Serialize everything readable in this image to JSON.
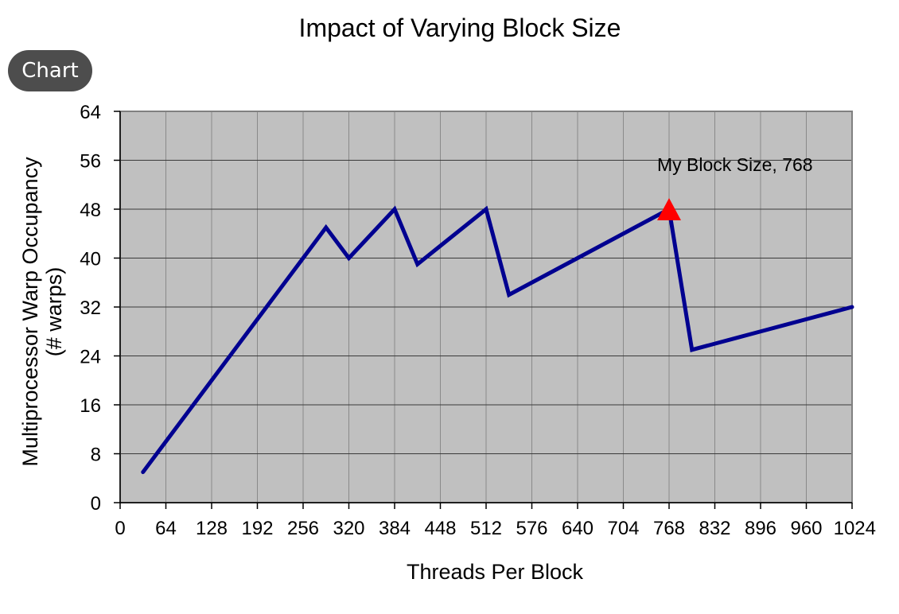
{
  "chip": {
    "label": "Chart"
  },
  "chart_data": {
    "type": "line",
    "title": "Impact of Varying Block Size",
    "xlabel": "Threads Per Block",
    "ylabel_lines": [
      "Multiprocessor Warp Occupancy",
      "(# warps)"
    ],
    "xlim": [
      0,
      1024
    ],
    "ylim": [
      0,
      64
    ],
    "xticks": [
      0,
      64,
      128,
      192,
      256,
      320,
      384,
      448,
      512,
      576,
      640,
      704,
      768,
      832,
      896,
      960,
      1024
    ],
    "yticks": [
      0,
      8,
      16,
      24,
      32,
      40,
      48,
      56,
      64
    ],
    "xtick_labels": [
      "0",
      "64",
      "128",
      "192",
      "256",
      "320",
      "384",
      "448",
      "512",
      "576",
      "640",
      "704",
      "768",
      "832",
      "896",
      "960",
      "1024"
    ],
    "ytick_labels": [
      "0",
      "8",
      "16",
      "24",
      "32",
      "40",
      "48",
      "56",
      "64"
    ],
    "grid": true,
    "plot_background": "#c0c0c0",
    "series": [
      {
        "color": "#000090",
        "x": [
          32,
          64,
          96,
          128,
          160,
          192,
          224,
          256,
          288,
          320,
          352,
          384,
          416,
          448,
          480,
          512,
          544,
          576,
          608,
          640,
          672,
          704,
          736,
          768,
          800,
          832,
          864,
          896,
          928,
          960,
          992,
          1024
        ],
        "y": [
          5,
          10,
          15,
          20,
          25,
          30,
          35,
          40,
          45,
          40,
          44,
          48,
          39,
          42,
          45,
          48,
          34,
          36,
          38,
          40,
          42,
          44,
          46,
          48,
          25,
          26,
          27,
          28,
          29,
          30,
          31,
          32
        ]
      }
    ],
    "marker": {
      "x": 768,
      "y": 48,
      "color": "#ff0000",
      "label": "My Block Size, 768"
    }
  }
}
